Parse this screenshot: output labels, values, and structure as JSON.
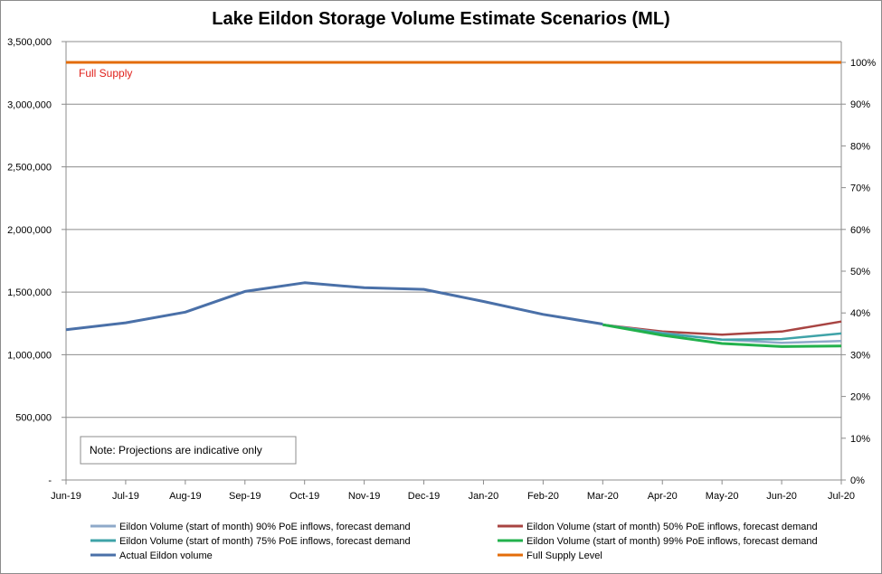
{
  "chart_data": {
    "type": "line",
    "title": "Lake Eildon Storage Volume Estimate Scenarios (ML)",
    "categories": [
      "Jun-19",
      "Jul-19",
      "Aug-19",
      "Sep-19",
      "Oct-19",
      "Nov-19",
      "Dec-19",
      "Jan-20",
      "Feb-20",
      "Mar-20",
      "Apr-20",
      "May-20",
      "Jun-20",
      "Jul-20"
    ],
    "ylim": [
      0,
      3500000
    ],
    "y_ticks": [
      0,
      500000,
      1000000,
      1500000,
      2000000,
      2500000,
      3000000,
      3500000
    ],
    "y_tick_labels": [
      "-",
      "500,000",
      "1,000,000",
      "1,500,000",
      "2,000,000",
      "2,500,000",
      "3,000,000",
      "3,500,000"
    ],
    "y2_ticks": [
      0,
      10,
      20,
      30,
      40,
      50,
      60,
      70,
      80,
      90,
      100
    ],
    "y2_tick_labels": [
      "0%",
      "10%",
      "20%",
      "30%",
      "40%",
      "50%",
      "60%",
      "70%",
      "80%",
      "90%",
      "100%"
    ],
    "full_supply_volume": 3334000,
    "grid": true,
    "legend_position": "bottom",
    "series": [
      {
        "name": "Eildon Volume (start of month) 90% PoE inflows, forecast demand",
        "color": "#8ea9c9",
        "width": 2.5,
        "values": [
          null,
          null,
          null,
          null,
          null,
          null,
          null,
          null,
          null,
          1240000,
          1175000,
          1120000,
          1095000,
          1110000
        ]
      },
      {
        "name": "Eildon Volume (start of month) 75% PoE inflows, forecast demand",
        "color": "#3fa3a8",
        "width": 2.5,
        "values": [
          null,
          null,
          null,
          null,
          null,
          null,
          null,
          null,
          null,
          1240000,
          1170000,
          1120000,
          1125000,
          1170000
        ]
      },
      {
        "name": "Eildon Volume (start of month) 50% PoE inflows, forecast demand",
        "color": "#a84442",
        "width": 2.5,
        "values": [
          null,
          null,
          null,
          null,
          null,
          null,
          null,
          null,
          null,
          1240000,
          1185000,
          1160000,
          1185000,
          1265000
        ]
      },
      {
        "name": "Eildon Volume (start of month) 99% PoE inflows, forecast demand",
        "color": "#22b14c",
        "width": 3,
        "values": [
          null,
          null,
          null,
          null,
          null,
          null,
          null,
          null,
          null,
          1240000,
          1155000,
          1090000,
          1065000,
          1070000
        ]
      },
      {
        "name": "Actual Eildon volume",
        "color": "#4a70a8",
        "width": 3,
        "values": [
          1200000,
          1255000,
          1340000,
          1505000,
          1575000,
          1535000,
          1522000,
          1425000,
          1322000,
          1245000,
          null,
          null,
          null,
          null
        ]
      },
      {
        "name": "Full Supply Level",
        "color": "#e36c0a",
        "width": 3,
        "values": [
          3334000,
          3334000,
          3334000,
          3334000,
          3334000,
          3334000,
          3334000,
          3334000,
          3334000,
          3334000,
          3334000,
          3334000,
          3334000,
          3334000
        ]
      }
    ],
    "legend_order": [
      0,
      2,
      1,
      3,
      4,
      5
    ],
    "annotations": {
      "full_supply_label": "Full Supply",
      "note": "Note: Projections are indicative only"
    }
  }
}
